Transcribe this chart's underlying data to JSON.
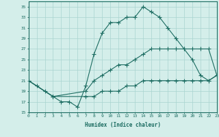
{
  "title": "",
  "xlabel": "Humidex (Indice chaleur)",
  "ylabel": "",
  "xlim": [
    0,
    23
  ],
  "ylim": [
    15,
    36
  ],
  "yticks": [
    15,
    17,
    19,
    21,
    23,
    25,
    27,
    29,
    31,
    33,
    35
  ],
  "xticks": [
    0,
    1,
    2,
    3,
    4,
    5,
    6,
    7,
    8,
    9,
    10,
    11,
    12,
    13,
    14,
    15,
    16,
    17,
    18,
    19,
    20,
    21,
    22,
    23
  ],
  "bg_color": "#d4eeea",
  "line_color": "#1a6b60",
  "grid_color": "#a8d4cf",
  "line1_x": [
    0,
    1,
    2,
    3,
    4,
    5,
    6,
    7,
    8,
    9,
    10,
    11,
    12,
    13,
    14,
    15,
    16,
    17,
    18,
    19,
    20,
    21,
    22,
    23
  ],
  "line1_y": [
    21,
    20,
    19,
    18,
    17,
    17,
    16,
    20,
    26,
    30,
    32,
    32,
    33,
    33,
    35,
    34,
    33,
    31,
    29,
    27,
    25,
    22,
    21,
    22
  ],
  "line2_x": [
    0,
    3,
    7,
    8,
    9,
    10,
    11,
    12,
    13,
    14,
    15,
    16,
    17,
    18,
    19,
    20,
    21,
    22,
    23
  ],
  "line2_y": [
    21,
    18,
    19,
    21,
    22,
    23,
    24,
    24,
    25,
    26,
    27,
    27,
    27,
    27,
    27,
    27,
    27,
    27,
    22
  ],
  "line3_x": [
    0,
    3,
    7,
    8,
    9,
    10,
    11,
    12,
    13,
    14,
    15,
    16,
    17,
    18,
    19,
    20,
    21,
    22,
    23
  ],
  "line3_y": [
    21,
    18,
    18,
    18,
    19,
    19,
    19,
    20,
    20,
    21,
    21,
    21,
    21,
    21,
    21,
    21,
    21,
    21,
    22
  ]
}
